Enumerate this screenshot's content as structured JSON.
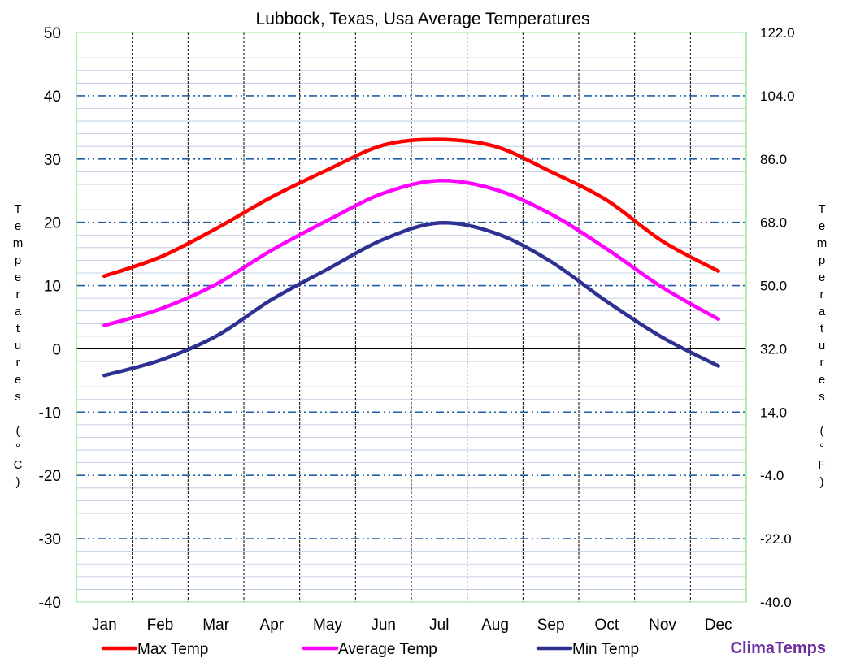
{
  "chart_data": {
    "type": "line",
    "title": "Lubbock, Texas, Usa Average Temperatures",
    "categories": [
      "Jan",
      "Feb",
      "Mar",
      "Apr",
      "May",
      "Jun",
      "Jul",
      "Aug",
      "Sep",
      "Oct",
      "Nov",
      "Dec"
    ],
    "ylabel_left": "Temperatures (°C)",
    "ylabel_right": "Temperatures (°F)",
    "ylim": [
      -40,
      50
    ],
    "y_ticks_left": [
      "50",
      "40",
      "30",
      "20",
      "10",
      "0",
      "-10",
      "-20",
      "-30",
      "-40"
    ],
    "y_ticks_right": [
      "122.0",
      "104.0",
      "86.0",
      "68.0",
      "50.0",
      "32.0",
      "14.0",
      "-4.0",
      "-22.0",
      "-40.0"
    ],
    "series": [
      {
        "name": "Max Temp",
        "color": "#ff0000",
        "values": [
          11.5,
          14.5,
          19.0,
          24.0,
          28.3,
          32.2,
          33.1,
          32.0,
          28.0,
          23.5,
          17.0,
          12.3
        ]
      },
      {
        "name": "Average Temp",
        "color": "#ff00ff",
        "values": [
          3.7,
          6.3,
          10.2,
          15.6,
          20.3,
          24.6,
          26.6,
          25.2,
          21.3,
          15.8,
          9.7,
          4.7
        ]
      },
      {
        "name": "Min Temp",
        "color": "#2e3192",
        "values": [
          -4.2,
          -1.8,
          2.0,
          7.8,
          12.6,
          17.3,
          19.9,
          18.3,
          13.8,
          7.5,
          1.8,
          -2.7
        ]
      }
    ],
    "grid": true,
    "legend_position": "bottom"
  },
  "branding": {
    "logo_text": "ClimaTemps",
    "color": "#7030a0"
  }
}
